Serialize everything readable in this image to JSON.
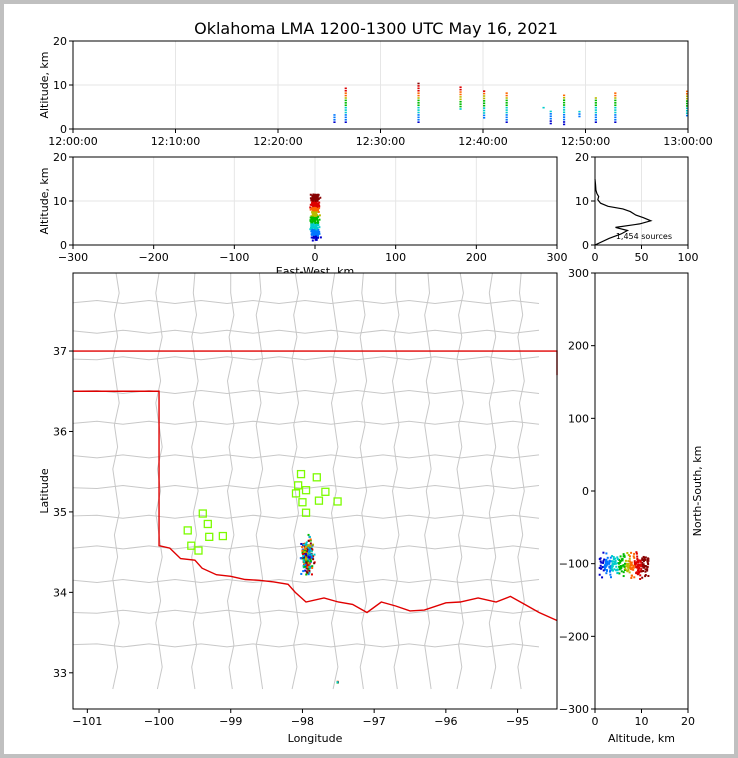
{
  "title": "Oklahoma LMA 1200-1300 UTC May 16, 2021",
  "colors": {
    "border": "#e00000",
    "county": "#c8c8c8",
    "station": "#7cfc00",
    "grid": "#e6e6e6",
    "outer": "#c0c0c0"
  },
  "chart_data": [
    {
      "id": "time-altitude",
      "type": "scatter",
      "xlabel": "",
      "ylabel": "Altitude, km",
      "xticks": [
        "12:00:00",
        "12:10:00",
        "12:20:00",
        "12:30:00",
        "12:40:00",
        "12:50:00",
        "13:00:00"
      ],
      "xlim_minutes": [
        0,
        60
      ],
      "ylim": [
        0,
        20
      ],
      "yticks": [
        0,
        10,
        20
      ],
      "columns": [
        {
          "t": 25.5,
          "zmin": 1.5,
          "zmax": 3.5
        },
        {
          "t": 26.6,
          "zmin": 1.5,
          "zmax": 9.5
        },
        {
          "t": 33.7,
          "zmin": 1.5,
          "zmax": 10.5
        },
        {
          "t": 37.8,
          "zmin": 4.5,
          "zmax": 9.5
        },
        {
          "t": 40.1,
          "zmin": 2.5,
          "zmax": 9.0
        },
        {
          "t": 42.3,
          "zmin": 1.5,
          "zmax": 8.5
        },
        {
          "t": 45.9,
          "zmin": 4.8,
          "zmax": 5.2
        },
        {
          "t": 46.6,
          "zmin": 1.2,
          "zmax": 4.0
        },
        {
          "t": 47.9,
          "zmin": 1.0,
          "zmax": 7.8
        },
        {
          "t": 49.4,
          "zmin": 2.8,
          "zmax": 4.3
        },
        {
          "t": 51.0,
          "zmin": 1.5,
          "zmax": 7.5
        },
        {
          "t": 52.9,
          "zmin": 1.5,
          "zmax": 8.5
        },
        {
          "t": 59.9,
          "zmin": 3.0,
          "zmax": 8.8
        }
      ]
    },
    {
      "id": "eastwest-altitude",
      "type": "scatter",
      "xlabel": "East-West, km",
      "ylabel": "Altitude, km",
      "xlim": [
        -300,
        300
      ],
      "xticks": [
        -300,
        -200,
        -100,
        0,
        100,
        200,
        300
      ],
      "ylim": [
        0,
        20
      ],
      "yticks": [
        0,
        10,
        20
      ],
      "cluster": {
        "x_center": 0,
        "x_spread": 8,
        "z_min": 1.0,
        "z_max": 11.5
      }
    },
    {
      "id": "altitude-histogram",
      "type": "line",
      "xlim": [
        0,
        100
      ],
      "xticks": [
        0,
        50,
        100
      ],
      "ylim": [
        0,
        20
      ],
      "yticks": [
        0,
        10,
        20
      ],
      "annotation": "1,454 sources",
      "profile": [
        [
          0,
          0.0
        ],
        [
          15,
          1.5
        ],
        [
          28,
          2.5
        ],
        [
          35,
          3.3
        ],
        [
          22,
          4.0
        ],
        [
          48,
          4.8
        ],
        [
          60,
          5.5
        ],
        [
          52,
          6.2
        ],
        [
          44,
          6.8
        ],
        [
          38,
          7.6
        ],
        [
          30,
          8.2
        ],
        [
          14,
          8.8
        ],
        [
          6,
          9.5
        ],
        [
          3,
          10.3
        ],
        [
          4,
          11.0
        ],
        [
          2,
          11.7
        ],
        [
          1,
          12.5
        ],
        [
          0.5,
          13.8
        ],
        [
          0,
          15.0
        ]
      ]
    },
    {
      "id": "plan-view",
      "type": "scatter",
      "xlabel": "Longitude",
      "ylabel": "Latitude",
      "xlim": [
        -101.2,
        -94.45
      ],
      "xticks": [
        -101,
        -100,
        -99,
        -98,
        -97,
        -96,
        -95
      ],
      "ylim": [
        32.55,
        37.97
      ],
      "yticks": [
        33,
        34,
        35,
        36,
        37
      ],
      "source_clusters": [
        {
          "lon": -97.93,
          "lat": 34.45,
          "lon_spread": 0.12,
          "lat_spread": 0.3
        },
        {
          "lon": -97.51,
          "lat": 32.88,
          "lon_spread": 0.01,
          "lat_spread": 0.03
        }
      ],
      "stations": [
        [
          -98.02,
          35.47
        ],
        [
          -97.8,
          35.43
        ],
        [
          -98.06,
          35.33
        ],
        [
          -97.95,
          35.27
        ],
        [
          -97.68,
          35.25
        ],
        [
          -98.09,
          35.23
        ],
        [
          -97.77,
          35.14
        ],
        [
          -97.51,
          35.13
        ],
        [
          -98.0,
          35.12
        ],
        [
          -97.95,
          34.99
        ],
        [
          -99.39,
          34.98
        ],
        [
          -99.32,
          34.85
        ],
        [
          -99.6,
          34.77
        ],
        [
          -99.3,
          34.69
        ],
        [
          -99.11,
          34.7
        ],
        [
          -99.55,
          34.58
        ],
        [
          -99.45,
          34.52
        ]
      ]
    },
    {
      "id": "altitude-northsouth",
      "type": "scatter",
      "xlabel": "Altitude, km",
      "ylabel": "North-South, km",
      "xlim": [
        0,
        20
      ],
      "xticks": [
        0,
        10,
        20
      ],
      "ylim": [
        -300,
        300
      ],
      "yticks": [
        -300,
        -200,
        -100,
        0,
        100,
        200,
        300
      ],
      "cluster": {
        "z_min": 1.0,
        "z_max": 11.5,
        "ns_center": -102,
        "ns_spread": 22
      }
    }
  ]
}
